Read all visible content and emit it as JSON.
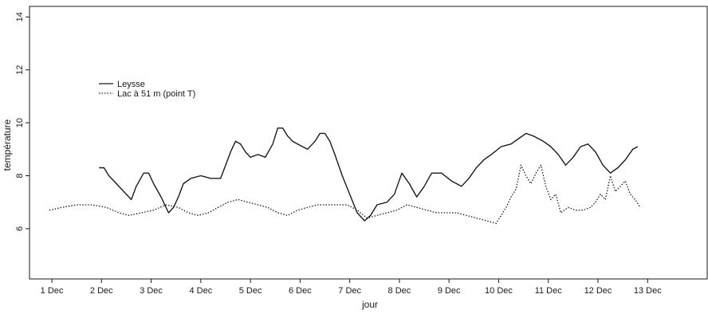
{
  "chart_data": {
    "type": "line",
    "xlabel": "jour",
    "ylabel": "température",
    "xlim": [
      0.55,
      14.2
    ],
    "ylim": [
      4.1,
      14.4
    ],
    "x_ticks": [
      {
        "value": 1,
        "label": "1 Dec"
      },
      {
        "value": 2,
        "label": "2 Dec"
      },
      {
        "value": 3,
        "label": "3 Dec"
      },
      {
        "value": 4,
        "label": "4 Dec"
      },
      {
        "value": 5,
        "label": "5 Dec"
      },
      {
        "value": 6,
        "label": "6 Dec"
      },
      {
        "value": 7,
        "label": "7 Dec"
      },
      {
        "value": 8,
        "label": "8 Dec"
      },
      {
        "value": 9,
        "label": "9 Dec"
      },
      {
        "value": 10,
        "label": "10 Dec"
      },
      {
        "value": 11,
        "label": "11 Dec"
      },
      {
        "value": 12,
        "label": "12 Dec"
      },
      {
        "value": 13,
        "label": "13 Dec"
      }
    ],
    "y_ticks": [
      {
        "value": 6,
        "label": "6"
      },
      {
        "value": 8,
        "label": "8"
      },
      {
        "value": 10,
        "label": "10"
      },
      {
        "value": 12,
        "label": "12"
      },
      {
        "value": 14,
        "label": "14"
      }
    ],
    "legend_position": "upper-left",
    "grid": false,
    "series": [
      {
        "name": "Leysse",
        "style": "solid",
        "color": "#1a1a1a",
        "points": [
          [
            1.95,
            8.3
          ],
          [
            2.05,
            8.3
          ],
          [
            2.15,
            8.0
          ],
          [
            2.3,
            7.7
          ],
          [
            2.45,
            7.4
          ],
          [
            2.6,
            7.1
          ],
          [
            2.7,
            7.6
          ],
          [
            2.85,
            8.1
          ],
          [
            2.95,
            8.1
          ],
          [
            3.05,
            7.7
          ],
          [
            3.2,
            7.2
          ],
          [
            3.35,
            6.6
          ],
          [
            3.45,
            6.8
          ],
          [
            3.55,
            7.2
          ],
          [
            3.65,
            7.7
          ],
          [
            3.8,
            7.9
          ],
          [
            4.0,
            8.0
          ],
          [
            4.2,
            7.9
          ],
          [
            4.4,
            7.9
          ],
          [
            4.5,
            8.4
          ],
          [
            4.6,
            8.9
          ],
          [
            4.7,
            9.3
          ],
          [
            4.8,
            9.2
          ],
          [
            4.9,
            8.9
          ],
          [
            5.0,
            8.7
          ],
          [
            5.15,
            8.8
          ],
          [
            5.3,
            8.7
          ],
          [
            5.45,
            9.2
          ],
          [
            5.55,
            9.8
          ],
          [
            5.65,
            9.8
          ],
          [
            5.75,
            9.5
          ],
          [
            5.85,
            9.3
          ],
          [
            5.95,
            9.2
          ],
          [
            6.05,
            9.1
          ],
          [
            6.15,
            9.0
          ],
          [
            6.3,
            9.3
          ],
          [
            6.4,
            9.6
          ],
          [
            6.5,
            9.6
          ],
          [
            6.6,
            9.3
          ],
          [
            6.7,
            8.8
          ],
          [
            6.85,
            8.0
          ],
          [
            7.0,
            7.3
          ],
          [
            7.15,
            6.6
          ],
          [
            7.3,
            6.3
          ],
          [
            7.42,
            6.5
          ],
          [
            7.55,
            6.9
          ],
          [
            7.75,
            7.0
          ],
          [
            7.9,
            7.3
          ],
          [
            8.05,
            8.1
          ],
          [
            8.2,
            7.7
          ],
          [
            8.35,
            7.2
          ],
          [
            8.5,
            7.6
          ],
          [
            8.65,
            8.1
          ],
          [
            8.85,
            8.1
          ],
          [
            9.05,
            7.8
          ],
          [
            9.25,
            7.6
          ],
          [
            9.4,
            7.9
          ],
          [
            9.55,
            8.3
          ],
          [
            9.7,
            8.6
          ],
          [
            9.85,
            8.8
          ],
          [
            10.05,
            9.1
          ],
          [
            10.25,
            9.2
          ],
          [
            10.4,
            9.4
          ],
          [
            10.55,
            9.6
          ],
          [
            10.7,
            9.5
          ],
          [
            10.9,
            9.3
          ],
          [
            11.05,
            9.1
          ],
          [
            11.2,
            8.8
          ],
          [
            11.35,
            8.4
          ],
          [
            11.5,
            8.7
          ],
          [
            11.65,
            9.1
          ],
          [
            11.8,
            9.2
          ],
          [
            11.95,
            8.9
          ],
          [
            12.1,
            8.4
          ],
          [
            12.25,
            8.1
          ],
          [
            12.4,
            8.3
          ],
          [
            12.55,
            8.6
          ],
          [
            12.7,
            9.0
          ],
          [
            12.8,
            9.1
          ]
        ]
      },
      {
        "name": "Lac à 51 m (point T)",
        "style": "dotted",
        "color": "#1a1a1a",
        "points": [
          [
            0.95,
            6.7
          ],
          [
            1.2,
            6.8
          ],
          [
            1.5,
            6.9
          ],
          [
            1.8,
            6.9
          ],
          [
            2.1,
            6.8
          ],
          [
            2.35,
            6.6
          ],
          [
            2.55,
            6.5
          ],
          [
            2.8,
            6.6
          ],
          [
            3.05,
            6.7
          ],
          [
            3.3,
            6.9
          ],
          [
            3.55,
            6.8
          ],
          [
            3.75,
            6.6
          ],
          [
            3.95,
            6.5
          ],
          [
            4.15,
            6.6
          ],
          [
            4.35,
            6.8
          ],
          [
            4.55,
            7.0
          ],
          [
            4.75,
            7.1
          ],
          [
            4.95,
            7.0
          ],
          [
            5.15,
            6.9
          ],
          [
            5.35,
            6.8
          ],
          [
            5.55,
            6.6
          ],
          [
            5.75,
            6.5
          ],
          [
            5.95,
            6.7
          ],
          [
            6.15,
            6.8
          ],
          [
            6.35,
            6.9
          ],
          [
            6.55,
            6.9
          ],
          [
            6.75,
            6.9
          ],
          [
            6.95,
            6.9
          ],
          [
            7.15,
            6.7
          ],
          [
            7.35,
            6.4
          ],
          [
            7.55,
            6.5
          ],
          [
            7.75,
            6.6
          ],
          [
            7.95,
            6.7
          ],
          [
            8.15,
            6.9
          ],
          [
            8.35,
            6.8
          ],
          [
            8.55,
            6.7
          ],
          [
            8.75,
            6.6
          ],
          [
            8.95,
            6.6
          ],
          [
            9.15,
            6.6
          ],
          [
            9.35,
            6.5
          ],
          [
            9.55,
            6.4
          ],
          [
            9.75,
            6.3
          ],
          [
            9.95,
            6.2
          ],
          [
            10.05,
            6.5
          ],
          [
            10.15,
            6.8
          ],
          [
            10.25,
            7.2
          ],
          [
            10.35,
            7.5
          ],
          [
            10.45,
            8.4
          ],
          [
            10.55,
            8.0
          ],
          [
            10.65,
            7.7
          ],
          [
            10.75,
            8.1
          ],
          [
            10.85,
            8.4
          ],
          [
            10.95,
            7.6
          ],
          [
            11.05,
            7.1
          ],
          [
            11.15,
            7.3
          ],
          [
            11.25,
            6.6
          ],
          [
            11.4,
            6.8
          ],
          [
            11.55,
            6.7
          ],
          [
            11.7,
            6.7
          ],
          [
            11.85,
            6.8
          ],
          [
            11.95,
            7.0
          ],
          [
            12.05,
            7.3
          ],
          [
            12.15,
            7.1
          ],
          [
            12.25,
            8.0
          ],
          [
            12.35,
            7.4
          ],
          [
            12.45,
            7.6
          ],
          [
            12.55,
            7.8
          ],
          [
            12.65,
            7.3
          ],
          [
            12.75,
            7.1
          ],
          [
            12.85,
            6.8
          ]
        ]
      }
    ]
  }
}
